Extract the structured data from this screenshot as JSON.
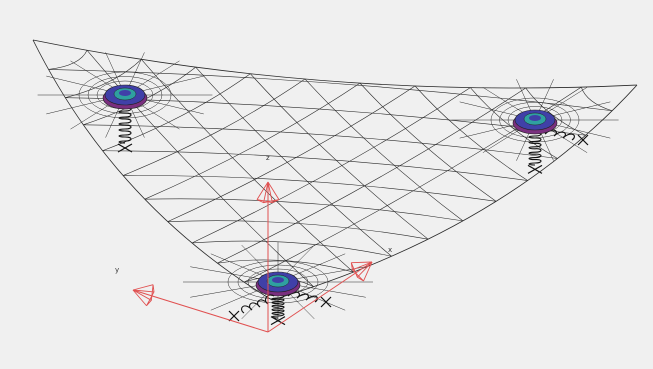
{
  "viewport": {
    "background": "#f0f0f0",
    "mesh_color": "#2a2a2a",
    "axis_color": "#e05050"
  },
  "axes": {
    "x_label": "x",
    "y_label": "y",
    "z_label": "z"
  },
  "supports": [
    {
      "name": "support-top-left",
      "icon": "spring-support-icon"
    },
    {
      "name": "support-top-right",
      "icon": "spring-support-icon"
    },
    {
      "name": "support-bottom",
      "icon": "spring-support-icon"
    }
  ],
  "support_colors": {
    "outer": "#7a2f7f",
    "mid": "#4040a8",
    "inner": "#2fa0a0",
    "spring": "#111111"
  }
}
